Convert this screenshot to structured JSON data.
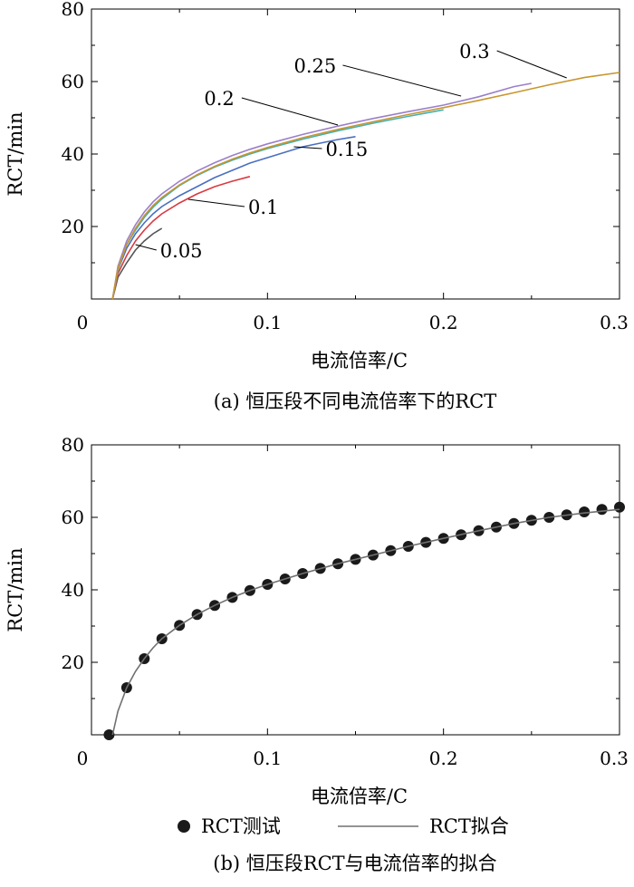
{
  "chart_data": [
    {
      "type": "line",
      "title": "",
      "caption": "(a) 恒压段不同电流倍率下的RCT",
      "xlabel": "电流倍率/C",
      "ylabel": "RCT/min",
      "xlim": [
        0,
        0.3
      ],
      "ylim": [
        0,
        80
      ],
      "xticks": [
        {
          "value": 0,
          "label": "0"
        },
        {
          "value": 0.1,
          "label": "0.1"
        },
        {
          "value": 0.2,
          "label": "0.2"
        },
        {
          "value": 0.3,
          "label": "0.3"
        }
      ],
      "yticks": [
        {
          "value": 20,
          "label": "20"
        },
        {
          "value": 40,
          "label": "40"
        },
        {
          "value": 60,
          "label": "60"
        },
        {
          "value": 80,
          "label": "80"
        }
      ],
      "grid": false,
      "series": [
        {
          "name": "0.05",
          "color": "#555555",
          "x": [
            0.012,
            0.015,
            0.02,
            0.025,
            0.03,
            0.035,
            0.04
          ],
          "y": [
            0,
            6,
            10,
            13.5,
            16,
            18,
            19.5
          ],
          "annotation": {
            "x": 0.025,
            "y": 15
          }
        },
        {
          "name": "0.1",
          "color": "#d93a40",
          "x": [
            0.012,
            0.015,
            0.02,
            0.025,
            0.03,
            0.035,
            0.04,
            0.05,
            0.06,
            0.07,
            0.08,
            0.09
          ],
          "y": [
            0,
            7,
            12,
            16,
            19,
            21.5,
            23.5,
            26.5,
            29,
            31,
            32.5,
            33.8
          ],
          "annotation": {
            "x": 0.055,
            "y": 27.5
          }
        },
        {
          "name": "0.15",
          "color": "#4a6fc0",
          "x": [
            0.012,
            0.015,
            0.02,
            0.025,
            0.03,
            0.035,
            0.04,
            0.05,
            0.06,
            0.07,
            0.08,
            0.09,
            0.1,
            0.11,
            0.12,
            0.13,
            0.14,
            0.15
          ],
          "y": [
            0,
            8,
            14,
            18,
            21,
            23.5,
            25.5,
            28.5,
            31,
            33.5,
            35.5,
            37.5,
            39,
            40.5,
            42,
            43,
            44,
            44.8
          ],
          "annotation": {
            "x": 0.115,
            "y": 42
          }
        },
        {
          "name": "0.2",
          "color": "#45b0b0",
          "x": [
            0.012,
            0.015,
            0.02,
            0.025,
            0.03,
            0.035,
            0.04,
            0.05,
            0.06,
            0.07,
            0.08,
            0.09,
            0.1,
            0.12,
            0.14,
            0.16,
            0.18,
            0.2
          ],
          "y": [
            0,
            8,
            15,
            19,
            22.5,
            25.3,
            27.6,
            31.3,
            34.1,
            36.4,
            38.3,
            40,
            41.5,
            44.1,
            46.4,
            48.5,
            50.4,
            52.2
          ],
          "annotation": {
            "x": 0.14,
            "y": 48
          }
        },
        {
          "name": "0.25",
          "color": "#9b7fc9",
          "x": [
            0.012,
            0.015,
            0.02,
            0.025,
            0.03,
            0.035,
            0.04,
            0.05,
            0.06,
            0.07,
            0.08,
            0.09,
            0.1,
            0.12,
            0.14,
            0.16,
            0.18,
            0.2,
            0.22,
            0.24,
            0.25
          ],
          "y": [
            0,
            9,
            16,
            20.5,
            24,
            26.8,
            29,
            32.5,
            35.3,
            37.6,
            39.6,
            41.3,
            42.8,
            45.4,
            47.7,
            49.8,
            51.7,
            53.5,
            55.8,
            58.6,
            59.5
          ],
          "annotation": {
            "x": 0.21,
            "y": 56
          }
        },
        {
          "name": "0.3",
          "color": "#c8962e",
          "x": [
            0.012,
            0.015,
            0.02,
            0.025,
            0.03,
            0.035,
            0.04,
            0.05,
            0.06,
            0.07,
            0.08,
            0.09,
            0.1,
            0.12,
            0.14,
            0.16,
            0.18,
            0.2,
            0.22,
            0.24,
            0.26,
            0.28,
            0.3
          ],
          "y": [
            0,
            8.5,
            15,
            19.5,
            23,
            25.8,
            28,
            31.5,
            34.3,
            36.6,
            38.6,
            40.3,
            41.8,
            44.5,
            46.8,
            48.9,
            50.9,
            52.8,
            54.8,
            56.9,
            59.1,
            61.1,
            62.5
          ],
          "annotation": {
            "x": 0.27,
            "y": 61
          }
        }
      ],
      "labels": [
        {
          "series": "0.05",
          "text": "0.05",
          "x": 0.039,
          "y": 11.5
        },
        {
          "series": "0.1",
          "text": "0.1",
          "x": 0.089,
          "y": 23.5
        },
        {
          "series": "0.15",
          "text": "0.15",
          "x": 0.133,
          "y": 39.5
        },
        {
          "series": "0.2",
          "text": "0.2",
          "x": 0.064,
          "y": 53.5
        },
        {
          "series": "0.25",
          "text": "0.25",
          "x": 0.115,
          "y": 62.5
        },
        {
          "series": "0.3",
          "text": "0.3",
          "x": 0.209,
          "y": 66.5
        }
      ]
    },
    {
      "type": "scatter",
      "title": "",
      "caption": "(b) 恒压段RCT与电流倍率的拟合",
      "xlabel": "电流倍率/C",
      "ylabel": "RCT/min",
      "xlim": [
        0,
        0.3
      ],
      "ylim": [
        0,
        80
      ],
      "xticks": [
        {
          "value": 0,
          "label": "0"
        },
        {
          "value": 0.1,
          "label": "0.1"
        },
        {
          "value": 0.2,
          "label": "0.2"
        },
        {
          "value": 0.3,
          "label": "0.3"
        }
      ],
      "yticks": [
        {
          "value": 20,
          "label": "20"
        },
        {
          "value": 40,
          "label": "40"
        },
        {
          "value": 60,
          "label": "60"
        },
        {
          "value": 80,
          "label": "80"
        }
      ],
      "grid": false,
      "legend_position": "bottom",
      "series": [
        {
          "name": "RCT测试",
          "kind": "markers",
          "color": "#1a1a1a",
          "x": [
            0.01,
            0.02,
            0.03,
            0.04,
            0.05,
            0.06,
            0.07,
            0.08,
            0.09,
            0.1,
            0.11,
            0.12,
            0.13,
            0.14,
            0.15,
            0.16,
            0.17,
            0.18,
            0.19,
            0.2,
            0.21,
            0.22,
            0.23,
            0.24,
            0.25,
            0.26,
            0.27,
            0.28,
            0.29,
            0.3
          ],
          "y": [
            0,
            13,
            21,
            26.5,
            30.2,
            33.2,
            35.7,
            37.9,
            39.8,
            41.5,
            43,
            44.5,
            45.9,
            47.2,
            48.4,
            49.6,
            50.8,
            52,
            53.1,
            54.2,
            55.2,
            56.3,
            57.3,
            58.3,
            59.2,
            60,
            60.7,
            61.5,
            62.2,
            62.8
          ]
        },
        {
          "name": "RCT拟合",
          "kind": "line",
          "color": "#707070",
          "x": [
            0.012,
            0.015,
            0.02,
            0.025,
            0.03,
            0.035,
            0.04,
            0.05,
            0.06,
            0.07,
            0.08,
            0.09,
            0.1,
            0.12,
            0.14,
            0.16,
            0.18,
            0.2,
            0.22,
            0.24,
            0.26,
            0.28,
            0.3
          ],
          "y": [
            0,
            6.5,
            13,
            17.5,
            21,
            24,
            26.5,
            30.2,
            33.2,
            35.7,
            37.9,
            39.8,
            41.5,
            44.5,
            47.2,
            49.6,
            52,
            54.2,
            56.3,
            58.3,
            60,
            61.2,
            62.2
          ]
        }
      ]
    }
  ]
}
